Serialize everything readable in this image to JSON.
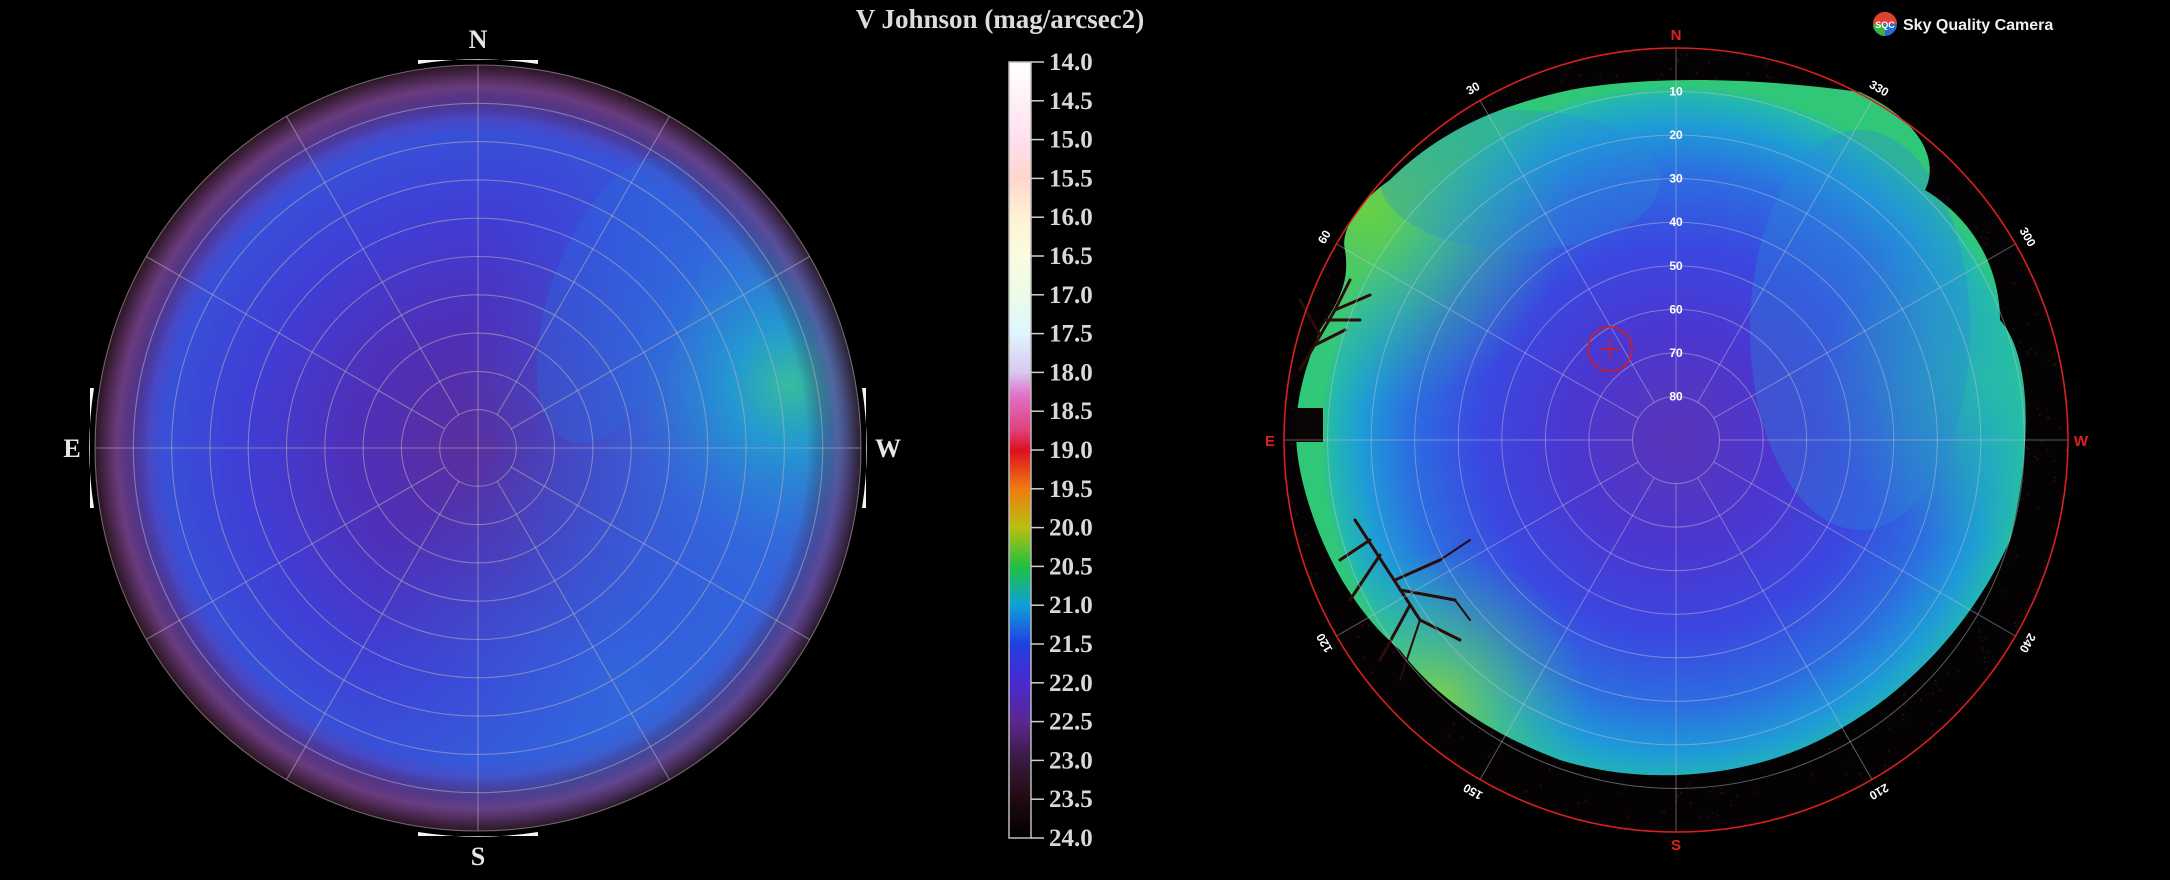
{
  "left_panel": {
    "compass": {
      "north": "N",
      "east": "E",
      "south": "S",
      "west": "W"
    }
  },
  "colorbar": {
    "title": "V Johnson (mag/arcsec2)",
    "ticks": [
      "14.0",
      "14.5",
      "15.0",
      "15.5",
      "16.0",
      "16.5",
      "17.0",
      "17.5",
      "18.0",
      "18.5",
      "19.0",
      "19.5",
      "20.0",
      "20.5",
      "21.0",
      "21.5",
      "22.0",
      "22.5",
      "23.0",
      "23.5",
      "24.0"
    ],
    "stops": [
      {
        "mag": 14.0,
        "color": "#ffffff"
      },
      {
        "mag": 15.0,
        "color": "#ffe0ef"
      },
      {
        "mag": 15.5,
        "color": "#ffd6cc"
      },
      {
        "mag": 16.0,
        "color": "#fff2d4"
      },
      {
        "mag": 16.5,
        "color": "#fbfbe0"
      },
      {
        "mag": 17.0,
        "color": "#ecfbe8"
      },
      {
        "mag": 17.5,
        "color": "#dff6ff"
      },
      {
        "mag": 18.0,
        "color": "#d8c8ef"
      },
      {
        "mag": 18.3,
        "color": "#e070c8"
      },
      {
        "mag": 18.75,
        "color": "#e0407a"
      },
      {
        "mag": 19.0,
        "color": "#dc1020"
      },
      {
        "mag": 19.5,
        "color": "#f07a10"
      },
      {
        "mag": 20.0,
        "color": "#b8c010"
      },
      {
        "mag": 20.5,
        "color": "#20c040"
      },
      {
        "mag": 21.0,
        "color": "#10a0d8"
      },
      {
        "mag": 21.5,
        "color": "#2040e0"
      },
      {
        "mag": 22.0,
        "color": "#4a2ad0"
      },
      {
        "mag": 22.5,
        "color": "#5a2890"
      },
      {
        "mag": 23.0,
        "color": "#3a1a40"
      },
      {
        "mag": 23.5,
        "color": "#200a10"
      },
      {
        "mag": 24.0,
        "color": "#000000"
      }
    ]
  },
  "right_panel": {
    "brand": {
      "logo_text": "SQC",
      "name": "Sky Quality Camera"
    },
    "cardinals": {
      "north": "N",
      "east": "E",
      "south": "S",
      "west": "W"
    },
    "altitude_labels": [
      "80",
      "70",
      "60",
      "50",
      "40",
      "30",
      "20",
      "10"
    ],
    "azimuth_labels": [
      "30",
      "60",
      "120",
      "150",
      "210",
      "240",
      "300",
      "330"
    ]
  },
  "chart_data": [
    {
      "type": "heatmap",
      "projection": "polar all-sky",
      "description_source": "left panel",
      "colorscale_unit": "mag/arcsec2",
      "radial_rings": 10,
      "azimuth_spokes": 12,
      "zenith_value": 22.0,
      "horizon_value": 23.5,
      "brightest_region": {
        "direction": "W",
        "value": 20.5
      }
    },
    {
      "type": "heatmap",
      "projection": "polar all-sky",
      "description_source": "right panel",
      "altitude_ticks": [
        80,
        70,
        60,
        50,
        40,
        30,
        20,
        10
      ],
      "azimuth_ticks": [
        30,
        60,
        120,
        150,
        210,
        240,
        300,
        330
      ],
      "zenith_value": 22.0,
      "brightest_region": {
        "direction": "NE",
        "value": 20.5
      }
    }
  ]
}
